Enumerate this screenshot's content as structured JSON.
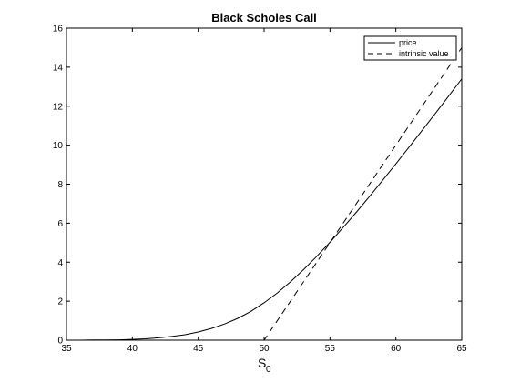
{
  "chart_data": {
    "type": "line",
    "title": "Black Scholes Call",
    "xlabel": "S",
    "xlabel_subscript": "0",
    "ylabel": "",
    "xlim": [
      35,
      65
    ],
    "ylim": [
      0,
      16
    ],
    "xticks": [
      35,
      40,
      45,
      50,
      55,
      60,
      65
    ],
    "yticks": [
      0,
      2,
      4,
      6,
      8,
      10,
      12,
      14,
      16
    ],
    "grid": false,
    "legend_position": "top-right",
    "series": [
      {
        "name": "price",
        "style": "solid",
        "color": "#000000",
        "x": [
          35,
          36,
          37,
          38,
          39,
          40,
          41,
          42,
          43,
          44,
          45,
          46,
          47,
          48,
          49,
          50,
          51,
          52,
          53,
          54,
          55,
          56,
          57,
          58,
          59,
          60,
          61,
          62,
          63,
          64,
          65
        ],
        "y": [
          0.0,
          0.0,
          0.01,
          0.01,
          0.02,
          0.04,
          0.07,
          0.12,
          0.19,
          0.28,
          0.42,
          0.6,
          0.83,
          1.12,
          1.48,
          1.92,
          2.42,
          2.99,
          3.62,
          4.3,
          5.02,
          5.78,
          6.56,
          7.37,
          8.2,
          9.04,
          9.9,
          10.76,
          11.63,
          12.51,
          13.4
        ]
      },
      {
        "name": "intrinsic value",
        "style": "dashed",
        "color": "#000000",
        "x": [
          35,
          50,
          65
        ],
        "y": [
          0,
          0,
          15
        ]
      }
    ]
  }
}
